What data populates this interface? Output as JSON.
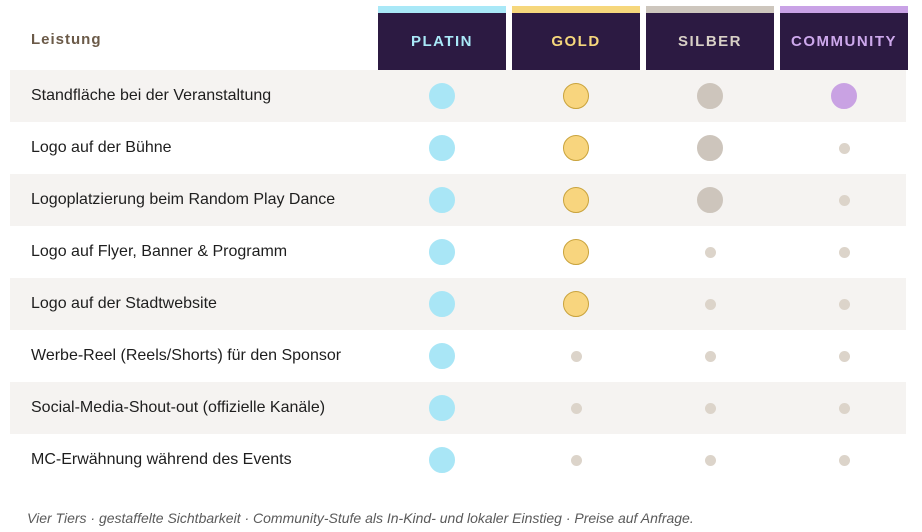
{
  "header": {
    "leistung_label": "Leistung"
  },
  "tiers": [
    {
      "name": "PLATIN",
      "text_color": "#a9e8f7",
      "bar_color": "#a9e8f7",
      "dot_color": "#a9e6f6",
      "dot_border": "#a9e6f6"
    },
    {
      "name": "GOLD",
      "text_color": "#f6d77c",
      "bar_color": "#f6d77c",
      "dot_color": "#f8d57e",
      "dot_border": "#c9a33c"
    },
    {
      "name": "SILBER",
      "text_color": "#d8d0c6",
      "bar_color": "#cdc6bd",
      "dot_color": "#cdc5bc",
      "dot_border": "#cdc5bc"
    },
    {
      "name": "COMMUNITY",
      "text_color": "#cda8ec",
      "bar_color": "#c9a2e6",
      "dot_color": "#c9a2e3",
      "dot_border": "#c9a2e3"
    }
  ],
  "none_dot_color": "#dcd4ca",
  "rows": [
    {
      "label": "Standfläche bei der Veranstaltung",
      "values": [
        true,
        true,
        true,
        true
      ]
    },
    {
      "label": "Logo auf der Bühne",
      "values": [
        true,
        true,
        true,
        false
      ]
    },
    {
      "label": "Logoplatzierung beim Random Play Dance",
      "values": [
        true,
        true,
        true,
        false
      ]
    },
    {
      "label": "Logo auf Flyer, Banner & Programm",
      "values": [
        true,
        true,
        false,
        false
      ]
    },
    {
      "label": "Logo auf der Stadtwebsite",
      "values": [
        true,
        true,
        false,
        false
      ]
    },
    {
      "label": "Werbe-Reel (Reels/Shorts) für den Sponsor",
      "values": [
        true,
        false,
        false,
        false
      ]
    },
    {
      "label": "Social-Media-Shout-out (offizielle Kanäle)",
      "values": [
        true,
        false,
        false,
        false
      ]
    },
    {
      "label": "MC-Erwähnung während des Events",
      "values": [
        true,
        false,
        false,
        false
      ]
    }
  ],
  "footer": "Vier Tiers · gestaffelte Sichtbarkeit · Community-Stufe als In-Kind- und lokaler Einstieg · Preise auf Anfrage."
}
